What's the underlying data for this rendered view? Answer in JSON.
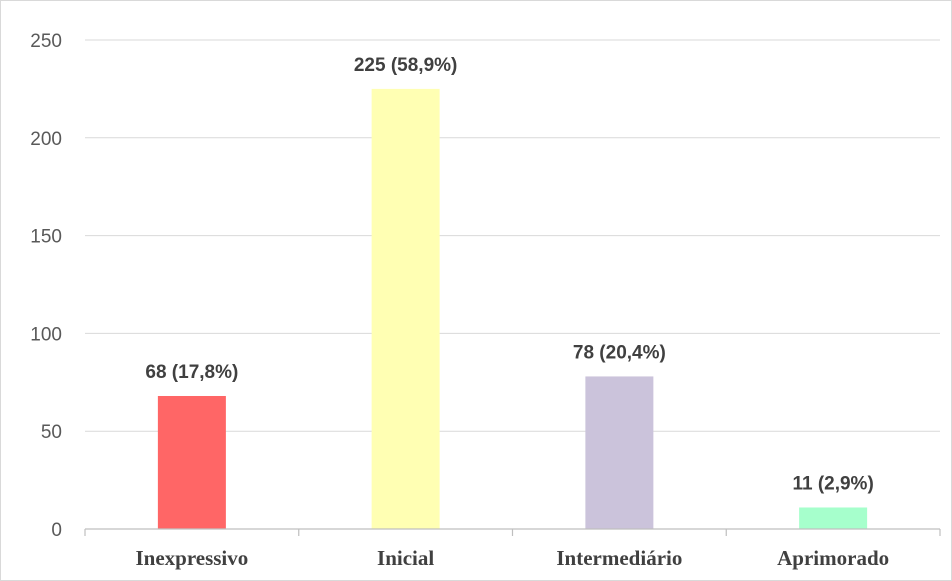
{
  "chart_data": {
    "type": "bar",
    "categories": [
      "Inexpressivo",
      "Inicial",
      "Intermediário",
      "Aprimorado"
    ],
    "values": [
      68,
      225,
      78,
      11
    ],
    "data_labels": [
      "68 (17,8%)",
      "225 (58,9%)",
      "78 (20,4%)",
      "11 (2,9%)"
    ],
    "colors": [
      "#ff6666",
      "#ffffb3",
      "#cbc3db",
      "#a6ffcc"
    ],
    "title": "",
    "xlabel": "",
    "ylabel": "",
    "ylim": [
      0,
      250
    ],
    "yticks": [
      0,
      50,
      100,
      150,
      200,
      250
    ],
    "grid": true,
    "legend": "none"
  }
}
